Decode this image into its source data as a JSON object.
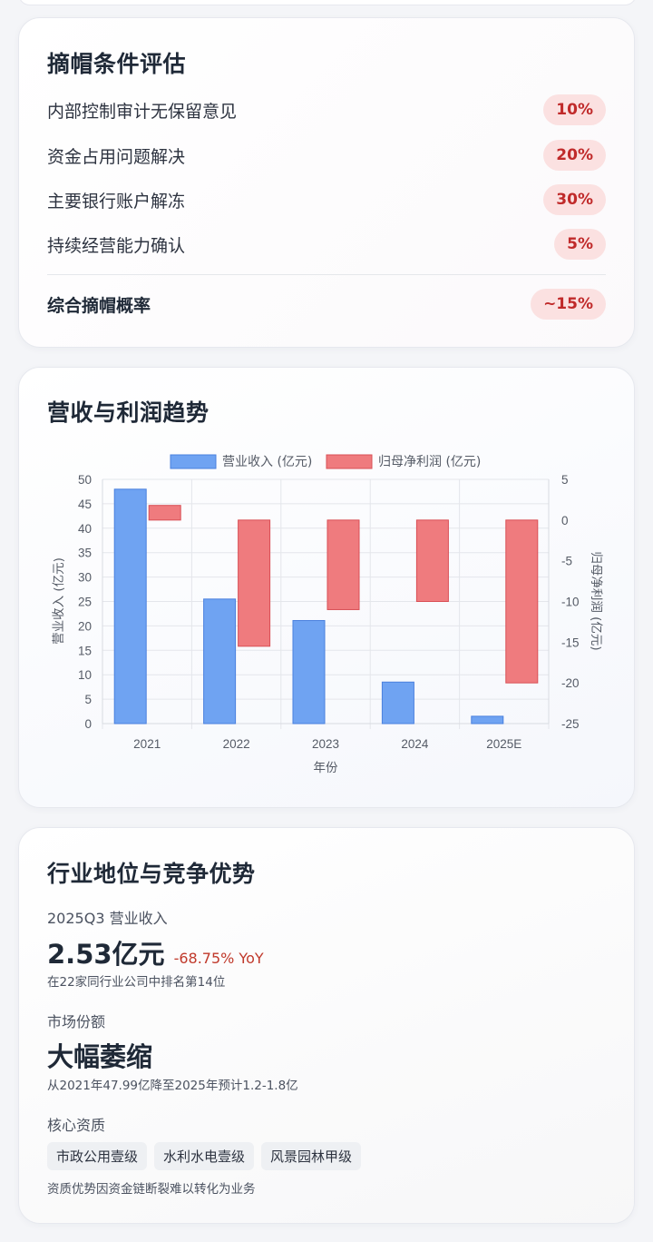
{
  "conditions_card": {
    "title": "摘帽条件评估",
    "items": [
      {
        "label": "内部控制审计无保留意见",
        "value": "10%"
      },
      {
        "label": "资金占用问题解决",
        "value": "20%"
      },
      {
        "label": "主要银行账户解冻",
        "value": "30%"
      },
      {
        "label": "持续经营能力确认",
        "value": "5%"
      }
    ],
    "total": {
      "label": "综合摘帽概率",
      "value": "~15%"
    }
  },
  "trend_card": {
    "title": "营收与利润趋势"
  },
  "chart_data": {
    "type": "bar",
    "categories": [
      "2021",
      "2022",
      "2023",
      "2024",
      "2025E"
    ],
    "series": [
      {
        "name": "营业收入 (亿元)",
        "axis": "left",
        "color": "#6fa3f2",
        "border": "#4a80de",
        "values": [
          47.99,
          25.5,
          21.1,
          8.5,
          1.5
        ]
      },
      {
        "name": "归母净利润 (亿元)",
        "axis": "right",
        "color": "#ef7b7e",
        "border": "#d94f55",
        "values": [
          1.8,
          -15.5,
          -11,
          -10,
          -20
        ]
      }
    ],
    "xlabel": "年份",
    "ylabel": "营业收入 (亿元)",
    "y2label": "归母净利润 (亿元)",
    "ylim": [
      0,
      50
    ],
    "y2lim": [
      -25,
      5
    ],
    "yticks": [
      "50",
      "45",
      "40",
      "35",
      "30",
      "25",
      "20",
      "15",
      "10",
      "5",
      "0"
    ],
    "y2ticks": [
      "5",
      "0",
      "-5",
      "-10",
      "-15",
      "-20",
      "-25"
    ],
    "grid": true,
    "legend": "top"
  },
  "industry_card": {
    "title": "行业地位与竞争优势",
    "revenue": {
      "label": "2025Q3 营业收入",
      "value": "2.53亿元",
      "yoy": "-68.75% YoY",
      "note": "在22家同行业公司中排名第14位"
    },
    "market_share": {
      "label": "市场份额",
      "value": "大幅萎缩",
      "note": "从2021年47.99亿降至2025年预计1.2-1.8亿"
    },
    "qualifications": {
      "label": "核心资质",
      "tags": [
        "市政公用壹级",
        "水利水电壹级",
        "风景园林甲级"
      ],
      "note": "资质优势因资金链断裂难以转化为业务"
    }
  }
}
